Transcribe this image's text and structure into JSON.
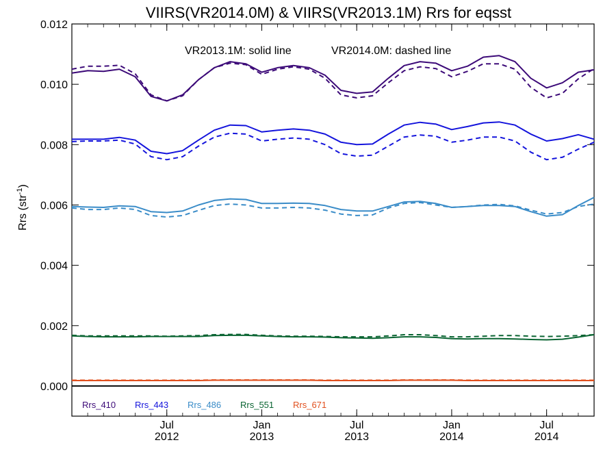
{
  "chart_data": {
    "type": "line",
    "title": "VIIRS(VR2014.0M) & VIIRS(VR2013.1M)  Rrs for eqsst",
    "ylabel": "Rrs (str",
    "ylabel_sup": "-1",
    "ylabel_end": ")",
    "annotation_solid": "VR2013.1M: solid line",
    "annotation_dashed": "VR2014.0M: dashed line",
    "ylim": [
      -0.001,
      0.012
    ],
    "xlim": [
      2012.0,
      2014.75
    ],
    "yticks": [
      0.0,
      0.002,
      0.004,
      0.006,
      0.008,
      0.01,
      0.012
    ],
    "ytick_labels": [
      "0.000",
      "0.002",
      "0.004",
      "0.006",
      "0.008",
      "0.010",
      "0.012"
    ],
    "xticks": [
      {
        "x": 2012.5,
        "top": "Jul",
        "bottom": "2012"
      },
      {
        "x": 2013.0,
        "top": "Jan",
        "bottom": "2013"
      },
      {
        "x": 2013.5,
        "top": "Jul",
        "bottom": "2013"
      },
      {
        "x": 2014.0,
        "top": "Jan",
        "bottom": "2014"
      },
      {
        "x": 2014.5,
        "top": "Jul",
        "bottom": "2014"
      }
    ],
    "x": [
      2012.0,
      2012.0833,
      2012.1667,
      2012.25,
      2012.3333,
      2012.4167,
      2012.5,
      2012.5833,
      2012.6667,
      2012.75,
      2012.8333,
      2012.9167,
      2013.0,
      2013.0833,
      2013.1667,
      2013.25,
      2013.3333,
      2013.4167,
      2013.5,
      2013.5833,
      2013.6667,
      2013.75,
      2013.8333,
      2013.9167,
      2014.0,
      2014.0833,
      2014.1667,
      2014.25,
      2014.3333,
      2014.4167,
      2014.5,
      2014.5833,
      2014.6667,
      2014.75
    ],
    "series": [
      {
        "name": "Rrs_410",
        "version": "VR2013.1M",
        "style": "solid",
        "color": "#3c0a78",
        "values": [
          0.01037,
          0.01045,
          0.01043,
          0.0105,
          0.01025,
          0.0096,
          0.00945,
          0.00965,
          0.01015,
          0.01055,
          0.01075,
          0.01068,
          0.0104,
          0.01055,
          0.01062,
          0.01055,
          0.0103,
          0.0098,
          0.0097,
          0.00975,
          0.0102,
          0.01062,
          0.01075,
          0.0107,
          0.01045,
          0.0106,
          0.0109,
          0.01095,
          0.01075,
          0.0102,
          0.00988,
          0.01005,
          0.0104,
          0.01048
        ]
      },
      {
        "name": "Rrs_410",
        "version": "VR2014.0M",
        "style": "dashed",
        "color": "#3c0a78",
        "values": [
          0.0105,
          0.0106,
          0.0106,
          0.01063,
          0.01035,
          0.00965,
          0.00945,
          0.00962,
          0.01015,
          0.01055,
          0.0107,
          0.01065,
          0.01033,
          0.0105,
          0.01058,
          0.0105,
          0.0102,
          0.00965,
          0.00955,
          0.00962,
          0.01005,
          0.01045,
          0.01058,
          0.01052,
          0.01025,
          0.01043,
          0.01068,
          0.01068,
          0.0105,
          0.0099,
          0.00955,
          0.0097,
          0.01018,
          0.01052
        ]
      },
      {
        "name": "Rrs_443",
        "version": "VR2013.1M",
        "style": "solid",
        "color": "#1414dc",
        "values": [
          0.00818,
          0.00818,
          0.00818,
          0.00824,
          0.00815,
          0.00778,
          0.0077,
          0.0078,
          0.00815,
          0.00848,
          0.00865,
          0.00863,
          0.00842,
          0.00848,
          0.00852,
          0.00848,
          0.00835,
          0.00808,
          0.008,
          0.00802,
          0.00835,
          0.00865,
          0.00874,
          0.00868,
          0.0085,
          0.0086,
          0.00872,
          0.00875,
          0.00865,
          0.00835,
          0.00812,
          0.0082,
          0.00833,
          0.00818
        ]
      },
      {
        "name": "Rrs_443",
        "version": "VR2014.0M",
        "style": "dashed",
        "color": "#1414dc",
        "values": [
          0.0081,
          0.00812,
          0.00812,
          0.00815,
          0.00802,
          0.0076,
          0.0075,
          0.0076,
          0.00795,
          0.00825,
          0.00838,
          0.00835,
          0.00812,
          0.00818,
          0.00822,
          0.00818,
          0.008,
          0.0077,
          0.00762,
          0.00765,
          0.00795,
          0.00825,
          0.00832,
          0.00828,
          0.00808,
          0.00815,
          0.00825,
          0.00825,
          0.00812,
          0.00775,
          0.0075,
          0.00758,
          0.00785,
          0.00808
        ]
      },
      {
        "name": "Rrs_486",
        "version": "VR2013.1M",
        "style": "solid",
        "color": "#3a8cc8",
        "values": [
          0.00595,
          0.00593,
          0.00592,
          0.00597,
          0.00595,
          0.00578,
          0.00575,
          0.0058,
          0.006,
          0.00615,
          0.0062,
          0.00618,
          0.00605,
          0.00605,
          0.00606,
          0.00605,
          0.00598,
          0.00585,
          0.0058,
          0.0058,
          0.00595,
          0.0061,
          0.00612,
          0.00605,
          0.00592,
          0.00595,
          0.00598,
          0.00598,
          0.00595,
          0.00578,
          0.00563,
          0.00568,
          0.00598,
          0.00625
        ]
      },
      {
        "name": "Rrs_486",
        "version": "VR2014.0M",
        "style": "dashed",
        "color": "#3a8cc8",
        "values": [
          0.0059,
          0.00585,
          0.00585,
          0.0059,
          0.00585,
          0.00565,
          0.0056,
          0.00565,
          0.00582,
          0.00598,
          0.00603,
          0.006,
          0.0059,
          0.0059,
          0.00592,
          0.0059,
          0.00583,
          0.0057,
          0.00565,
          0.00567,
          0.0059,
          0.00605,
          0.00608,
          0.006,
          0.00592,
          0.00595,
          0.006,
          0.00602,
          0.00597,
          0.00583,
          0.0057,
          0.00575,
          0.00595,
          0.00603
        ]
      },
      {
        "name": "Rrs_551",
        "version": "VR2013.1M",
        "style": "solid",
        "color": "#0a6432",
        "values": [
          0.00166,
          0.00164,
          0.00163,
          0.00163,
          0.00163,
          0.00164,
          0.00164,
          0.00164,
          0.00164,
          0.00167,
          0.00168,
          0.00168,
          0.00166,
          0.00164,
          0.00163,
          0.00163,
          0.00162,
          0.0016,
          0.00159,
          0.00158,
          0.0016,
          0.00163,
          0.00163,
          0.00161,
          0.00157,
          0.00156,
          0.00157,
          0.00157,
          0.00156,
          0.00154,
          0.00153,
          0.00155,
          0.00162,
          0.0017
        ]
      },
      {
        "name": "Rrs_551",
        "version": "VR2014.0M",
        "style": "dashed",
        "color": "#0a6432",
        "values": [
          0.00168,
          0.00166,
          0.00166,
          0.00166,
          0.00166,
          0.00166,
          0.00165,
          0.00166,
          0.00167,
          0.0017,
          0.00171,
          0.00171,
          0.00168,
          0.00166,
          0.00165,
          0.00165,
          0.00164,
          0.00163,
          0.00163,
          0.00163,
          0.00166,
          0.0017,
          0.0017,
          0.00167,
          0.00163,
          0.00163,
          0.00165,
          0.00167,
          0.00167,
          0.00165,
          0.00164,
          0.00165,
          0.00167,
          0.0017
        ]
      },
      {
        "name": "Rrs_671",
        "version": "VR2013.1M",
        "style": "solid",
        "color": "#e1501e",
        "values": [
          0.00018,
          0.00018,
          0.00018,
          0.00018,
          0.00018,
          0.00018,
          0.00018,
          0.00018,
          0.00018,
          0.00019,
          0.00019,
          0.00019,
          0.00019,
          0.00019,
          0.00019,
          0.00019,
          0.00018,
          0.00018,
          0.00018,
          0.00018,
          0.00018,
          0.00019,
          0.00019,
          0.00019,
          0.00019,
          0.00018,
          0.00018,
          0.00018,
          0.00018,
          0.00018,
          0.00018,
          0.00018,
          0.00018,
          0.00018
        ]
      },
      {
        "name": "Rrs_671",
        "version": "VR2014.0M",
        "style": "dashed",
        "color": "#e1501e",
        "values": [
          0.00019,
          0.00019,
          0.00019,
          0.00019,
          0.00019,
          0.00019,
          0.00019,
          0.00019,
          0.00019,
          0.0002,
          0.0002,
          0.0002,
          0.0002,
          0.0002,
          0.0002,
          0.0002,
          0.00019,
          0.00019,
          0.00019,
          0.00019,
          0.00019,
          0.0002,
          0.0002,
          0.0002,
          0.0002,
          0.00019,
          0.00019,
          0.00019,
          0.00019,
          0.00019,
          0.00019,
          0.00019,
          0.00019,
          0.00019
        ]
      }
    ],
    "legend": [
      {
        "label": "Rrs_410",
        "color": "#3c0a78"
      },
      {
        "label": "Rrs_443",
        "color": "#1414dc"
      },
      {
        "label": "Rrs_486",
        "color": "#3a8cc8"
      },
      {
        "label": "Rrs_551",
        "color": "#0a6432"
      },
      {
        "label": "Rrs_671",
        "color": "#e1501e"
      }
    ],
    "legend_placement": "bottom-left",
    "zero_line": true,
    "grid": false
  }
}
